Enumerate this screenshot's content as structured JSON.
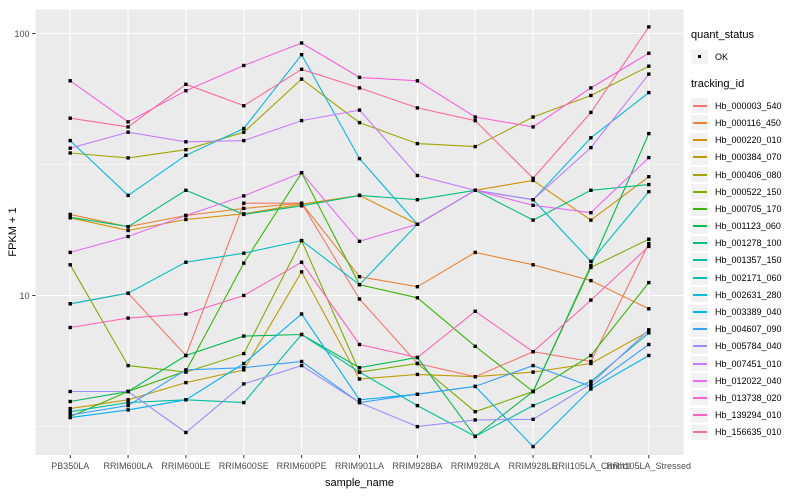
{
  "axes": {
    "x_title": "sample_name",
    "y_title": "FPKM + 1",
    "y_ticks": [
      {
        "label": "100",
        "value": 100
      },
      {
        "label": "10",
        "value": 10
      }
    ]
  },
  "legend": {
    "quant_status_title": "quant_status",
    "quant_status_items": [
      {
        "label": "OK"
      }
    ],
    "tracking_title": "tracking_id"
  },
  "colors": {
    "panel_bg": "#EBEBEB",
    "grid": "#FFFFFF",
    "tick": "#333333",
    "axis_text": "#4D4D4D",
    "point": "#000000",
    "legend_key_bg": "#F2F2F2"
  },
  "chart_data": {
    "type": "line",
    "title": "",
    "xlabel": "sample_name",
    "ylabel": "FPKM + 1",
    "y_scale": "log10",
    "ylim": [
      2.45,
      122
    ],
    "major_y_gridlines": [
      10,
      100
    ],
    "minor_y_gridlines": [
      3.162,
      31.62
    ],
    "grid": true,
    "legend_position": "right",
    "point_shape": "filled-square",
    "categories": [
      "PB350LA",
      "RRIM600LA",
      "RRIM600LE",
      "RRIM600SE",
      "RRIM600PE",
      "RRIM901LA",
      "RRIM928BA",
      "RRIM928LA",
      "RRIM928LE",
      "RRII105LA_Control",
      "RRII105LA_Stressed"
    ],
    "series": [
      {
        "name": "Hb_000003_540",
        "color": "#F8766D",
        "values": [
          9.3,
          10.2,
          5.9,
          22.5,
          22.5,
          9.7,
          5.5,
          4.9,
          6.1,
          5.6,
          15.8
        ]
      },
      {
        "name": "Hb_000116_450",
        "color": "#EA8331",
        "values": [
          20.4,
          18.3,
          20.2,
          21.5,
          22.5,
          11.8,
          10.8,
          14.6,
          13.1,
          11.4,
          8.9
        ]
      },
      {
        "name": "Hb_000220_010",
        "color": "#D89000",
        "values": [
          19.8,
          17.7,
          19.5,
          20.5,
          22.3,
          24.1,
          18.7,
          25.2,
          27.5,
          19.4,
          28.4
        ]
      },
      {
        "name": "Hb_000384_070",
        "color": "#C09B00",
        "values": [
          3.7,
          4.0,
          4.65,
          5.2,
          12.3,
          4.8,
          5.0,
          4.9,
          5.1,
          5.5,
          7.3
        ]
      },
      {
        "name": "Hb_000406_080",
        "color": "#A3A500",
        "values": [
          35,
          33.5,
          36,
          42,
          67,
          45.7,
          38,
          37,
          48,
          58,
          75
        ]
      },
      {
        "name": "Hb_000522_150",
        "color": "#7CAE00",
        "values": [
          13.1,
          5.4,
          5.1,
          6.0,
          16.2,
          5.1,
          5.5,
          3.6,
          4.3,
          12.8,
          16.4
        ]
      },
      {
        "name": "Hb_000705_170",
        "color": "#39B600",
        "values": [
          3.45,
          4.3,
          5.15,
          13.3,
          29.4,
          11.0,
          9.8,
          6.4,
          4.3,
          5.9,
          11.2
        ]
      },
      {
        "name": "Hb_001123_060",
        "color": "#00BB4E",
        "values": [
          3.94,
          4.3,
          5.9,
          7.0,
          7.1,
          5.3,
          5.8,
          2.9,
          4.3,
          13.0,
          41.5
        ]
      },
      {
        "name": "Hb_001278_100",
        "color": "#00BF7D",
        "values": [
          19.9,
          18.3,
          25.2,
          20.4,
          22.0,
          24.1,
          23.2,
          25.2,
          19.4,
          25.2,
          26.5
        ]
      },
      {
        "name": "Hb_001357_150",
        "color": "#00C1A3",
        "values": [
          3.6,
          3.9,
          4.0,
          3.9,
          7.1,
          5.1,
          3.8,
          2.9,
          3.8,
          4.7,
          7.2
        ]
      },
      {
        "name": "Hb_002171_060",
        "color": "#00BFC4",
        "values": [
          9.3,
          10.2,
          13.4,
          14.5,
          16.2,
          11.0,
          18.7,
          25.2,
          23.2,
          13.5,
          24.9
        ]
      },
      {
        "name": "Hb_002631_280",
        "color": "#00BAE0",
        "values": [
          39,
          24.1,
          34.3,
          43.4,
          83,
          33.3,
          18.7,
          25.2,
          23.2,
          40,
          59.5
        ]
      },
      {
        "name": "Hb_003389_040",
        "color": "#00B0F6",
        "values": [
          3.42,
          3.66,
          4.0,
          5.5,
          8.5,
          4.0,
          4.2,
          4.5,
          2.65,
          4.4,
          5.9
        ]
      },
      {
        "name": "Hb_004607_090",
        "color": "#35A2FF",
        "values": [
          3.5,
          3.8,
          5.2,
          5.3,
          5.6,
          3.9,
          4.2,
          4.5,
          5.4,
          4.5,
          6.5
        ]
      },
      {
        "name": "Hb_005784_040",
        "color": "#9590FF",
        "values": [
          4.3,
          4.3,
          3.0,
          4.6,
          5.4,
          3.9,
          3.16,
          3.35,
          3.37,
          4.6,
          7.4
        ]
      },
      {
        "name": "Hb_007451_010",
        "color": "#C77CFF",
        "values": [
          36.5,
          42,
          38.6,
          39,
          46.5,
          51,
          28.7,
          25.2,
          23.2,
          36.7,
          70
        ]
      },
      {
        "name": "Hb_012022_040",
        "color": "#E76BF3",
        "values": [
          14.6,
          16.8,
          20.2,
          24,
          29.4,
          16.1,
          18.7,
          25.2,
          22.1,
          20.7,
          33.6
        ]
      },
      {
        "name": "Hb_013738_020",
        "color": "#FA62DB",
        "values": [
          66,
          46,
          60.5,
          75.5,
          92,
          68,
          66,
          48,
          44,
          62,
          84
        ]
      },
      {
        "name": "Hb_139294_010",
        "color": "#FF62BC",
        "values": [
          7.55,
          8.2,
          8.5,
          10,
          13.4,
          6.5,
          5.8,
          8.7,
          6.1,
          9.6,
          15.4
        ]
      },
      {
        "name": "Hb_156635_010",
        "color": "#FF6A98",
        "values": [
          47.5,
          44,
          64,
          53,
          73,
          62,
          52,
          46.5,
          28,
          50,
          106
        ]
      }
    ]
  }
}
